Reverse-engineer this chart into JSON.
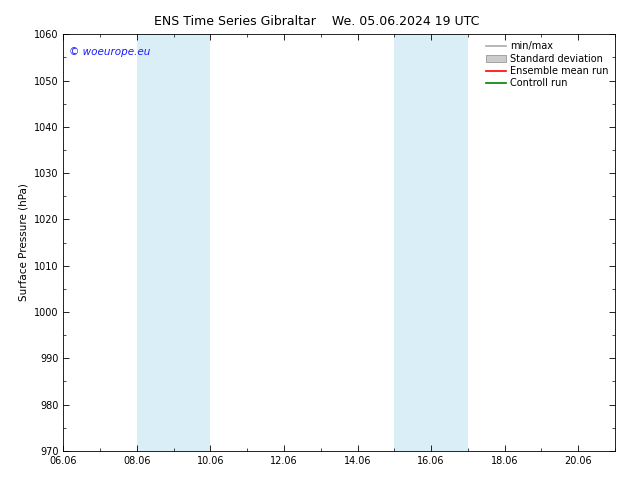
{
  "title_left": "ENS Time Series Gibraltar",
  "title_right": "We. 05.06.2024 19 UTC",
  "ylabel": "Surface Pressure (hPa)",
  "ylim": [
    970,
    1060
  ],
  "yticks": [
    970,
    980,
    990,
    1000,
    1010,
    1020,
    1030,
    1040,
    1050,
    1060
  ],
  "xlim_start": 0.0,
  "xlim_end": 15.0,
  "xtick_labels": [
    "06.06",
    "08.06",
    "10.06",
    "12.06",
    "14.06",
    "16.06",
    "18.06",
    "20.06"
  ],
  "xtick_positions": [
    0.0,
    2.0,
    4.0,
    6.0,
    8.0,
    10.0,
    12.0,
    14.0
  ],
  "shaded_bands": [
    {
      "x_start": 2.0,
      "x_end": 4.0
    },
    {
      "x_start": 9.0,
      "x_end": 11.0
    }
  ],
  "band_color": "#daeef8",
  "background_color": "#ffffff",
  "copyright_text": "© woeurope.eu",
  "copyright_color": "#1a1aff",
  "legend_items": [
    {
      "label": "min/max",
      "color": "#aaaaaa",
      "type": "line",
      "linewidth": 1.2
    },
    {
      "label": "Standard deviation",
      "color": "#cccccc",
      "type": "rect"
    },
    {
      "label": "Ensemble mean run",
      "color": "#ff0000",
      "type": "line",
      "linewidth": 1.2
    },
    {
      "label": "Controll run",
      "color": "#008000",
      "type": "line",
      "linewidth": 1.2
    }
  ],
  "title_fontsize": 9,
  "tick_fontsize": 7,
  "ylabel_fontsize": 7.5,
  "legend_fontsize": 7,
  "copyright_fontsize": 7.5
}
